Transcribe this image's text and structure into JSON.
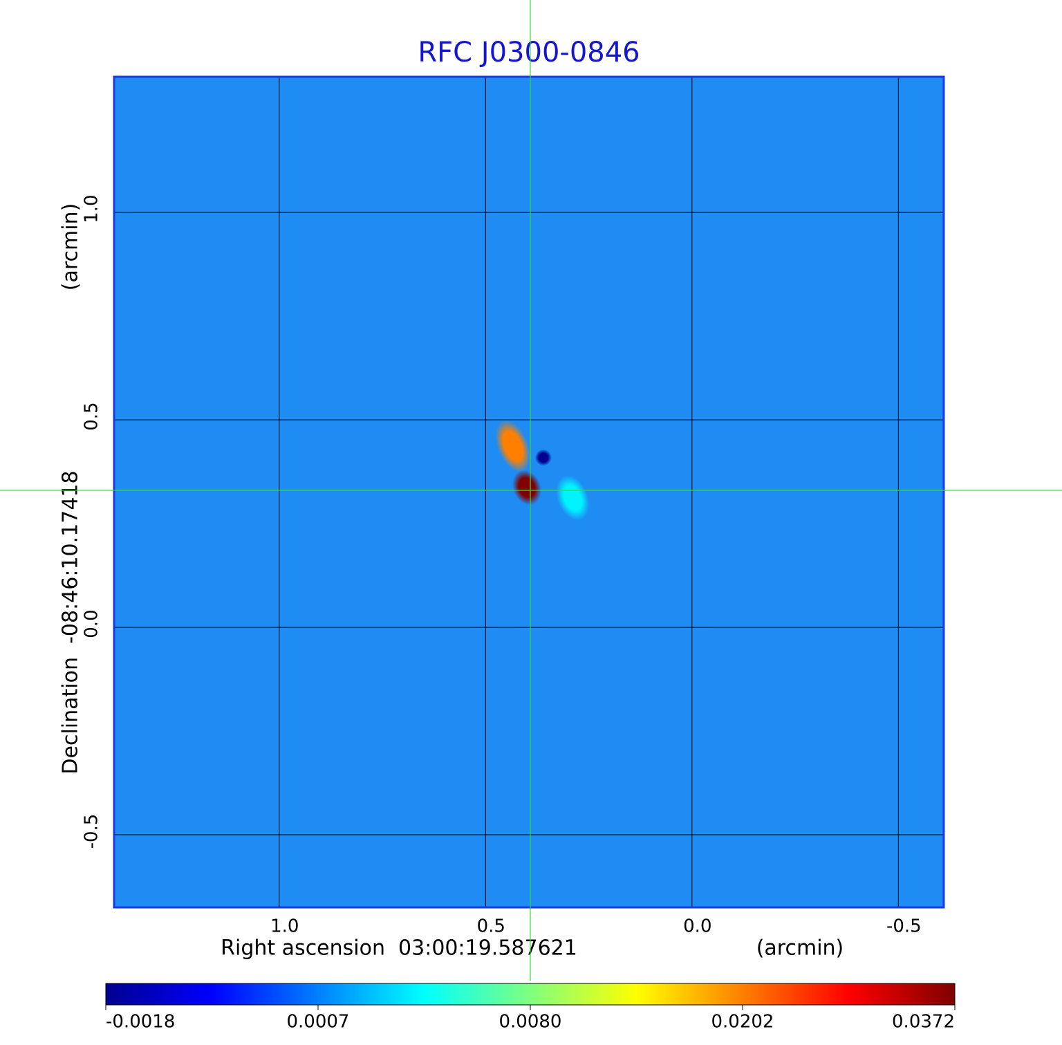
{
  "chart_data": {
    "type": "image",
    "title": "RFC J0300-0846",
    "xlabel": "Right ascension  03:00:19.587621",
    "xunit": "(arcmin)",
    "ylabel": "Declination  -08:46:10.17418",
    "yunit": "(arcmin)",
    "xlim": [
      1.4,
      -0.61
    ],
    "ylim": [
      -0.675,
      1.327
    ],
    "xticks": [
      {
        "value": 1,
        "label": "1.0"
      },
      0.5,
      {
        "value": 0,
        "label": "0.0"
      },
      -0.5
    ],
    "yticks": [
      {
        "value": 1,
        "label": "1.0"
      },
      0.5,
      {
        "value": 0,
        "label": "0.0"
      },
      -0.5
    ],
    "grid": true,
    "colorbar_ticks": [
      -0.0018,
      0.0007,
      {
        "value": 0.008,
        "label": "0.0080"
      },
      0.0202,
      0.0372
    ],
    "features": [
      {
        "x": 0.434,
        "y": 0.437,
        "value": 0.0202
      },
      {
        "x": 0.289,
        "y": 0.312,
        "value": 0.004
      },
      {
        "x": 0.36,
        "y": 0.409,
        "value": -0.0018
      },
      {
        "x": 0.4,
        "y": 0.337,
        "value": 0.0372
      }
    ]
  }
}
